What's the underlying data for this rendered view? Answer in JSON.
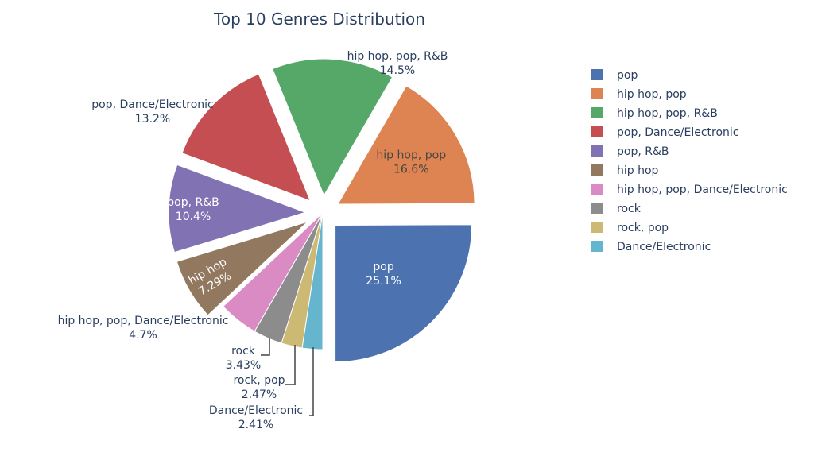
{
  "chart_data": {
    "type": "pie",
    "title": "Top 10 Genres Distribution",
    "slices": [
      {
        "label": "pop",
        "value": 25.1,
        "display": "25.1%",
        "color": "#4C72B0"
      },
      {
        "label": "hip hop, pop",
        "value": 16.6,
        "display": "16.6%",
        "color": "#DD8452"
      },
      {
        "label": "hip hop, pop, R&B",
        "value": 14.5,
        "display": "14.5%",
        "color": "#55A868"
      },
      {
        "label": "pop, Dance/Electronic",
        "value": 13.2,
        "display": "13.2%",
        "color": "#C44E52"
      },
      {
        "label": "pop, R&B",
        "value": 10.4,
        "display": "10.4%",
        "color": "#8172B3"
      },
      {
        "label": "hip hop",
        "value": 7.29,
        "display": "7.29%",
        "color": "#937860"
      },
      {
        "label": "hip hop, pop, Dance/Electronic",
        "value": 4.7,
        "display": "4.7%",
        "color": "#DA8BC3"
      },
      {
        "label": "rock",
        "value": 3.43,
        "display": "3.43%",
        "color": "#8C8C8C"
      },
      {
        "label": "rock, pop",
        "value": 2.47,
        "display": "2.47%",
        "color": "#CCB974"
      },
      {
        "label": "Dance/Electronic",
        "value": 2.41,
        "display": "2.41%",
        "color": "#64B5CD"
      }
    ],
    "pulled": [
      "pop",
      "hip hop, pop",
      "hip hop, pop, R&B",
      "pop, Dance/Electronic",
      "pop, R&B",
      "hip hop"
    ],
    "legend_position": "right"
  }
}
